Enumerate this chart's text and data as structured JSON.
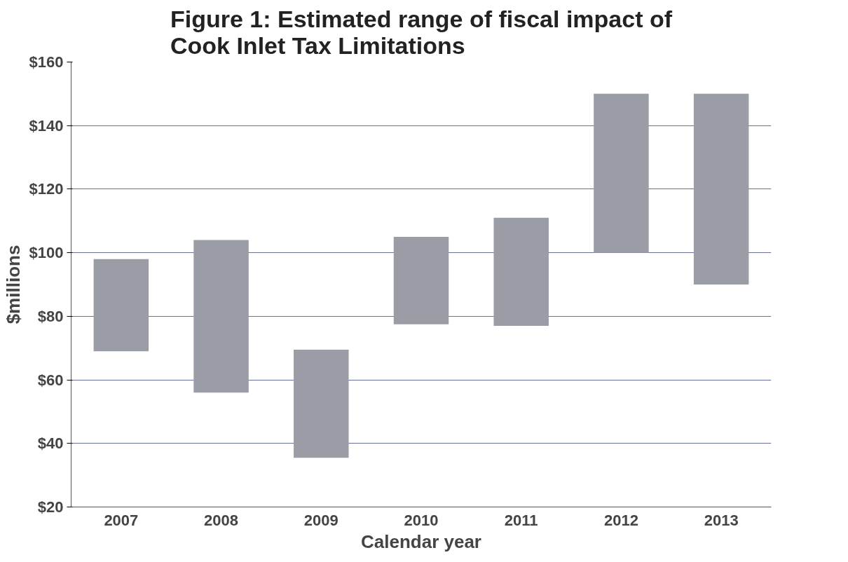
{
  "chart_data": {
    "type": "bar",
    "title": "Figure 1: Estimated range of fiscal impact of\nCook Inlet Tax Limitations",
    "xlabel": "Calendar year",
    "ylabel": "$millions",
    "categories": [
      "2007",
      "2008",
      "2009",
      "2010",
      "2011",
      "2012",
      "2013"
    ],
    "base": [
      69,
      56,
      35.5,
      77.5,
      77,
      100,
      90
    ],
    "values": [
      29,
      48,
      34,
      27.5,
      34,
      50,
      60
    ],
    "color": "#9a9da5",
    "ylim": [
      20,
      160
    ],
    "yticks": [
      {
        "value": 20,
        "label": "$20"
      },
      {
        "value": 40,
        "label": "$40"
      },
      {
        "value": 60,
        "label": "$60"
      },
      {
        "value": 80,
        "label": "$80"
      },
      {
        "value": 100,
        "label": "$100"
      },
      {
        "value": 120,
        "label": "$120"
      },
      {
        "value": 140,
        "label": "$140"
      },
      {
        "value": 160,
        "label": "$160"
      }
    ],
    "grid": "y"
  }
}
